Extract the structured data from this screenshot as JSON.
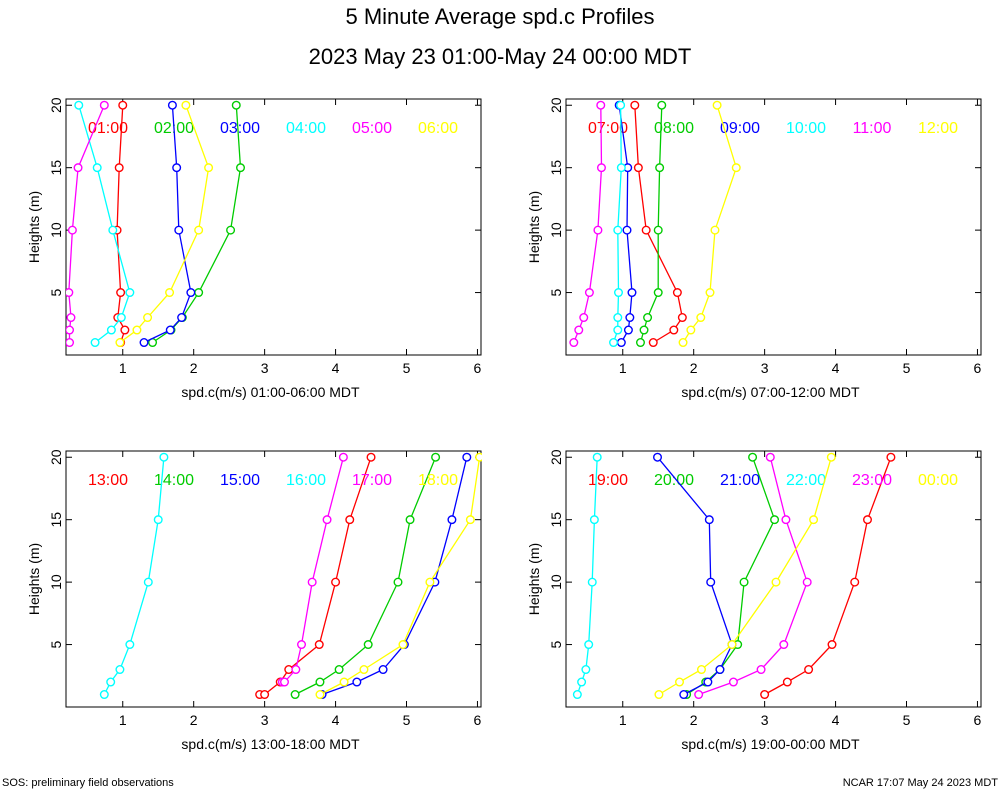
{
  "title": "5 Minute Average spd.c Profiles",
  "subtitle": "2023 May 23 01:00-May 24 00:00 MDT",
  "footer_left": "SOS: preliminary field observations",
  "footer_right": "NCAR 17:07 May 24 2023 MDT",
  "chart_data": [
    {
      "type": "line",
      "xlabel": "spd.c(m/s) 01:00-06:00 MDT",
      "ylabel": "Heights (m)",
      "xlim": [
        0.2,
        6.05
      ],
      "ylim": [
        0,
        20.5
      ],
      "xticks": [
        1,
        2,
        3,
        4,
        5,
        6
      ],
      "yticks": [
        5,
        10,
        15,
        20
      ],
      "series": [
        {
          "name": "01:00",
          "color": "#ff0000",
          "x": [
            0.97,
            1.03,
            0.93,
            0.97,
            0.92,
            0.95,
            1.0
          ],
          "y": [
            1,
            2,
            3,
            5,
            10,
            15,
            20
          ]
        },
        {
          "name": "02:00",
          "color": "#00cc00",
          "x": [
            1.42,
            1.68,
            1.84,
            2.07,
            2.52,
            2.66,
            2.6
          ],
          "y": [
            1,
            2,
            3,
            5,
            10,
            15,
            20
          ]
        },
        {
          "name": "03:00",
          "color": "#0000ff",
          "x": [
            1.3,
            1.67,
            1.83,
            1.96,
            1.79,
            1.76,
            1.7
          ],
          "y": [
            1,
            2,
            3,
            5,
            10,
            15,
            20
          ]
        },
        {
          "name": "04:00",
          "color": "#00ffff",
          "x": [
            0.61,
            0.84,
            0.98,
            1.1,
            0.86,
            0.64,
            0.38
          ],
          "y": [
            1,
            2,
            3,
            5,
            10,
            15,
            20
          ]
        },
        {
          "name": "05:00",
          "color": "#ff00ff",
          "x": [
            0.25,
            0.25,
            0.27,
            0.24,
            0.29,
            0.37,
            0.74
          ],
          "y": [
            1,
            2,
            3,
            5,
            10,
            15,
            20
          ]
        },
        {
          "name": "06:00",
          "color": "#ffff00",
          "x": [
            0.96,
            1.2,
            1.35,
            1.66,
            2.07,
            2.21,
            1.89
          ],
          "y": [
            1,
            2,
            3,
            5,
            10,
            15,
            20
          ]
        }
      ]
    },
    {
      "type": "line",
      "xlabel": "spd.c(m/s) 07:00-12:00 MDT",
      "ylabel": "Heights (m)",
      "xlim": [
        0.2,
        6.05
      ],
      "ylim": [
        0,
        20.5
      ],
      "xticks": [
        1,
        2,
        3,
        4,
        5,
        6
      ],
      "yticks": [
        5,
        10,
        15,
        20
      ],
      "series": [
        {
          "name": "07:00",
          "color": "#ff0000",
          "x": [
            1.43,
            1.72,
            1.84,
            1.77,
            1.33,
            1.22,
            1.17
          ],
          "y": [
            1,
            2,
            3,
            5,
            10,
            15,
            20
          ]
        },
        {
          "name": "08:00",
          "color": "#00cc00",
          "x": [
            1.25,
            1.3,
            1.35,
            1.5,
            1.5,
            1.52,
            1.55
          ],
          "y": [
            1,
            2,
            3,
            5,
            10,
            15,
            20
          ]
        },
        {
          "name": "09:00",
          "color": "#0000ff",
          "x": [
            0.98,
            1.08,
            1.1,
            1.13,
            1.06,
            1.07,
            0.95
          ],
          "y": [
            1,
            2,
            3,
            5,
            10,
            15,
            20
          ]
        },
        {
          "name": "10:00",
          "color": "#00ffff",
          "x": [
            0.87,
            0.93,
            0.93,
            0.94,
            0.93,
            0.98,
            0.97
          ],
          "y": [
            1,
            2,
            3,
            5,
            10,
            15,
            20
          ]
        },
        {
          "name": "11:00",
          "color": "#ff00ff",
          "x": [
            0.31,
            0.38,
            0.45,
            0.53,
            0.65,
            0.7,
            0.69
          ],
          "y": [
            1,
            2,
            3,
            5,
            10,
            15,
            20
          ]
        },
        {
          "name": "12:00",
          "color": "#ffff00",
          "x": [
            1.85,
            1.96,
            2.1,
            2.23,
            2.3,
            2.6,
            2.33
          ],
          "y": [
            1,
            2,
            3,
            5,
            10,
            15,
            20
          ]
        }
      ]
    },
    {
      "type": "line",
      "xlabel": "spd.c(m/s) 13:00-18:00 MDT",
      "ylabel": "Heights (m)",
      "xlim": [
        0.2,
        6.05
      ],
      "ylim": [
        0,
        20.5
      ],
      "xticks": [
        1,
        2,
        3,
        4,
        5,
        6
      ],
      "yticks": [
        5,
        10,
        15,
        20
      ],
      "series": [
        {
          "name": "13:00",
          "color": "#ff0000",
          "x": [
            2.93,
            3.0,
            3.22,
            3.34,
            3.77,
            4.0,
            4.2,
            4.5
          ],
          "y": [
            1,
            1,
            2,
            3,
            5,
            10,
            15,
            20
          ]
        },
        {
          "name": "14:00",
          "color": "#00cc00",
          "x": [
            3.43,
            3.78,
            4.05,
            4.46,
            4.88,
            5.05,
            5.41
          ],
          "y": [
            1,
            2,
            3,
            5,
            10,
            15,
            20
          ]
        },
        {
          "name": "15:00",
          "color": "#0000ff",
          "x": [
            3.81,
            4.3,
            4.67,
            4.97,
            5.4,
            5.64,
            5.85
          ],
          "y": [
            1,
            2,
            3,
            5,
            10,
            15,
            20
          ]
        },
        {
          "name": "16:00",
          "color": "#00ffff",
          "x": [
            0.74,
            0.83,
            0.96,
            1.1,
            1.36,
            1.5,
            1.58
          ],
          "y": [
            1,
            2,
            3,
            5,
            10,
            15,
            20
          ]
        },
        {
          "name": "17:00",
          "color": "#ff00ff",
          "x": [
            3.25,
            3.28,
            3.44,
            3.52,
            3.67,
            3.88,
            4.11
          ],
          "y": [
            2,
            2,
            3,
            5,
            10,
            15,
            20
          ]
        },
        {
          "name": "18:00",
          "color": "#ffff00",
          "x": [
            3.78,
            4.12,
            4.4,
            4.95,
            5.33,
            5.9,
            6.03
          ],
          "y": [
            1,
            2,
            3,
            5,
            10,
            15,
            20
          ]
        }
      ]
    },
    {
      "type": "line",
      "xlabel": "spd.c(m/s) 19:00-00:00 MDT",
      "ylabel": "Heights (m)",
      "xlim": [
        0.2,
        6.05
      ],
      "ylim": [
        0,
        20.5
      ],
      "xticks": [
        1,
        2,
        3,
        4,
        5,
        6
      ],
      "yticks": [
        5,
        10,
        15,
        20
      ],
      "series": [
        {
          "name": "19:00",
          "color": "#ff0000",
          "x": [
            3.0,
            3.32,
            3.62,
            3.95,
            4.27,
            4.45,
            4.78
          ],
          "y": [
            1,
            2,
            3,
            5,
            10,
            15,
            20
          ]
        },
        {
          "name": "20:00",
          "color": "#00cc00",
          "x": [
            1.9,
            2.17,
            2.37,
            2.62,
            2.71,
            3.14,
            2.83
          ],
          "y": [
            1,
            2,
            3,
            5,
            10,
            15,
            20
          ]
        },
        {
          "name": "21:00",
          "color": "#0000ff",
          "x": [
            1.86,
            2.2,
            2.37,
            2.54,
            2.24,
            2.22,
            1.49
          ],
          "y": [
            1,
            2,
            3,
            5,
            10,
            15,
            20
          ]
        },
        {
          "name": "22:00",
          "color": "#00ffff",
          "x": [
            0.36,
            0.42,
            0.48,
            0.52,
            0.57,
            0.6,
            0.64
          ],
          "y": [
            1,
            2,
            3,
            5,
            10,
            15,
            20
          ]
        },
        {
          "name": "23:00",
          "color": "#ff00ff",
          "x": [
            2.07,
            2.56,
            2.95,
            3.27,
            3.6,
            3.3,
            3.08
          ],
          "y": [
            1,
            2,
            3,
            5,
            10,
            15,
            20
          ]
        },
        {
          "name": "00:00",
          "color": "#ffff00",
          "x": [
            1.51,
            1.8,
            2.11,
            2.54,
            3.16,
            3.69,
            3.94
          ],
          "y": [
            1,
            2,
            3,
            5,
            10,
            15,
            20
          ]
        }
      ]
    }
  ]
}
